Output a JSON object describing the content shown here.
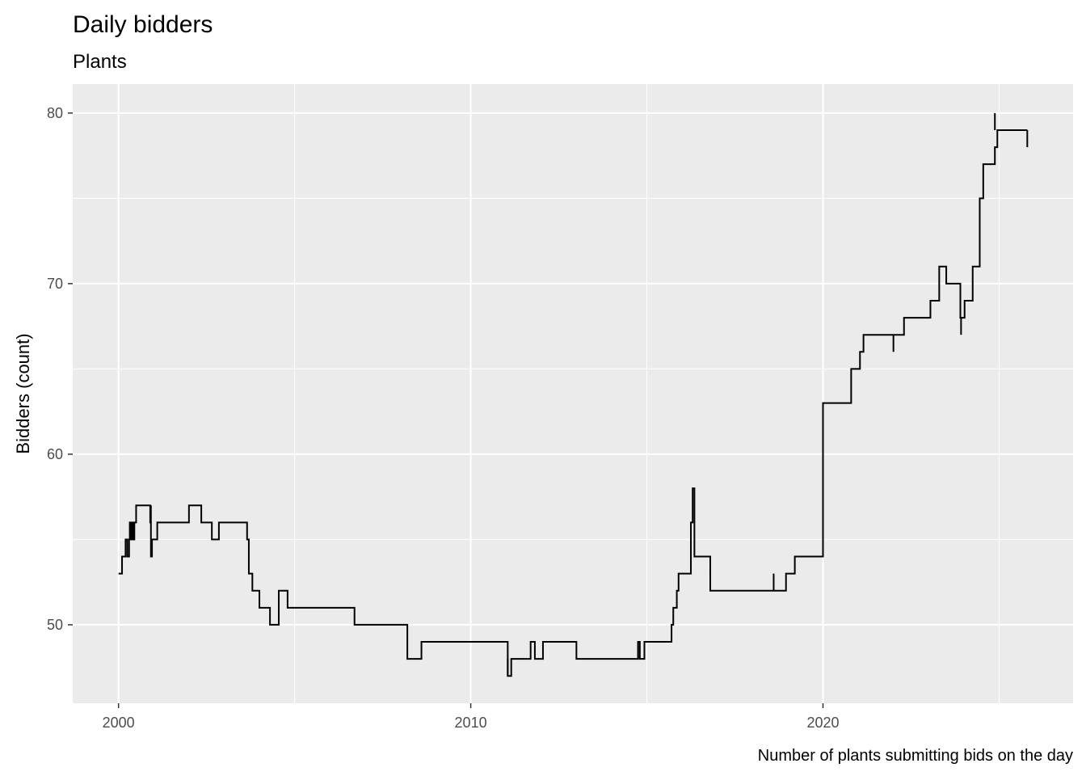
{
  "chart_data": {
    "type": "line",
    "step": true,
    "title": "Daily bidders",
    "subtitle": "Plants",
    "xlabel": "Number of plants submitting bids on the day",
    "ylabel": "Bidders (count)",
    "xlim": [
      1998.7,
      2027.1
    ],
    "ylim": [
      45.4,
      81.7
    ],
    "x_ticks": [
      2000,
      2010,
      2020
    ],
    "x_tick_labels": [
      "2000",
      "2010",
      "2020"
    ],
    "y_ticks": [
      50,
      60,
      70,
      80
    ],
    "y_tick_labels": [
      "50",
      "60",
      "70",
      "80"
    ],
    "grid": true,
    "legend": "none",
    "series": [
      {
        "x": [
          2000.0,
          2000.1,
          2000.1,
          2000.2,
          2000.2,
          2000.25,
          2000.25,
          2000.3,
          2000.3,
          2000.32,
          2000.32,
          2000.36,
          2000.36,
          2000.38,
          2000.38,
          2000.42,
          2000.42,
          2000.45,
          2000.45,
          2000.5,
          2000.5,
          2000.9,
          2000.9,
          2000.92,
          2000.92,
          2000.95,
          2000.95,
          2001.1,
          2001.1,
          2001.3,
          2001.3,
          2002.0,
          2002.0,
          2002.35,
          2002.35,
          2002.65,
          2002.65,
          2002.85,
          2002.85,
          2003.65,
          2003.65,
          2003.7,
          2003.7,
          2003.8,
          2003.8,
          2004.0,
          2004.0,
          2004.3,
          2004.3,
          2004.55,
          2004.55,
          2004.8,
          2004.8,
          2005.3,
          2005.3,
          2006.7,
          2006.7,
          2008.2,
          2008.2,
          2008.6,
          2008.6,
          2011.05,
          2011.05,
          2011.15,
          2011.15,
          2011.7,
          2011.7,
          2011.82,
          2011.82,
          2012.05,
          2012.05,
          2013.0,
          2013.0,
          2014.75,
          2014.75,
          2014.8,
          2014.8,
          2014.93,
          2014.93,
          2015.7,
          2015.7,
          2015.75,
          2015.75,
          2015.85,
          2015.85,
          2015.9,
          2015.9,
          2016.25,
          2016.25,
          2016.3,
          2016.3,
          2016.35,
          2016.35,
          2016.8,
          2016.8,
          2018.6,
          2018.6,
          2018.95,
          2018.95,
          2019.2,
          2019.2,
          2020.0,
          2020.0,
          2020.8,
          2020.8,
          2021.05,
          2021.05,
          2021.15,
          2021.15,
          2022.0,
          2022.0,
          2022.3,
          2022.3,
          2023.05,
          2023.05,
          2023.3,
          2023.3,
          2023.5,
          2023.5,
          2023.9,
          2023.9,
          2024.02,
          2024.02,
          2024.25,
          2024.25,
          2024.45,
          2024.45,
          2024.55,
          2024.55,
          2024.88,
          2024.88,
          2024.95,
          2024.95,
          2025.8
        ],
        "y": [
          53.0,
          53.0,
          54.0,
          54.0,
          55.0,
          55.0,
          54.0,
          54.0,
          55.0,
          55.0,
          56.0,
          56.0,
          55.0,
          55.0,
          56.0,
          56.0,
          55.0,
          55.0,
          56.0,
          56.0,
          57.0,
          57.0,
          56.0,
          56.0,
          54.0,
          54.0,
          55.0,
          55.0,
          56.0,
          56.0,
          56.0,
          56.0,
          57.0,
          57.0,
          56.0,
          56.0,
          55.0,
          55.0,
          56.0,
          56.0,
          55.0,
          55.0,
          53.0,
          53.0,
          52.0,
          52.0,
          51.0,
          51.0,
          50.0,
          50.0,
          52.0,
          52.0,
          51.0,
          51.0,
          51.0,
          51.0,
          50.0,
          50.0,
          48.0,
          48.0,
          49.0,
          49.0,
          47.0,
          47.0,
          48.0,
          48.0,
          49.0,
          49.0,
          48.0,
          48.0,
          49.0,
          49.0,
          48.0,
          48.0,
          49.0,
          49.0,
          48.0,
          48.0,
          49.0,
          49.0,
          50.0,
          50.0,
          51.0,
          51.0,
          52.0,
          52.0,
          53.0,
          53.0,
          56.0,
          56.0,
          58.0,
          58.0,
          54.0,
          54.0,
          52.0,
          52.0,
          52.0,
          52.0,
          53.0,
          53.0,
          54.0,
          54.0,
          63.0,
          63.0,
          65.0,
          65.0,
          66.0,
          66.0,
          67.0,
          67.0,
          67.0,
          67.0,
          68.0,
          68.0,
          69.0,
          69.0,
          71.0,
          71.0,
          70.0,
          70.0,
          68.0,
          68.0,
          69.0,
          69.0,
          71.0,
          71.0,
          75.0,
          75.0,
          77.0,
          77.0,
          78.0,
          78.0,
          79.0,
          79.0
        ]
      }
    ],
    "spikes": [
      {
        "x": 2000.92,
        "y0": 56.0,
        "y1": 57.0
      },
      {
        "x": 2018.6,
        "y0": 52.0,
        "y1": 53.0
      },
      {
        "x": 2022.0,
        "y0": 66.0,
        "y1": 67.0
      },
      {
        "x": 2023.92,
        "y0": 67.0,
        "y1": 68.0
      },
      {
        "x": 2024.88,
        "y0": 79.0,
        "y1": 80.0
      },
      {
        "x": 2025.8,
        "y0": 78.0,
        "y1": 79.0
      },
      {
        "x": 2011.05,
        "y0": 47.0,
        "y1": 48.0
      },
      {
        "x": 2014.75,
        "y0": 48.0,
        "y1": 49.0
      }
    ],
    "colors": {
      "panel": "#ebebeb",
      "grid": "#ffffff",
      "line": "#000000"
    }
  }
}
